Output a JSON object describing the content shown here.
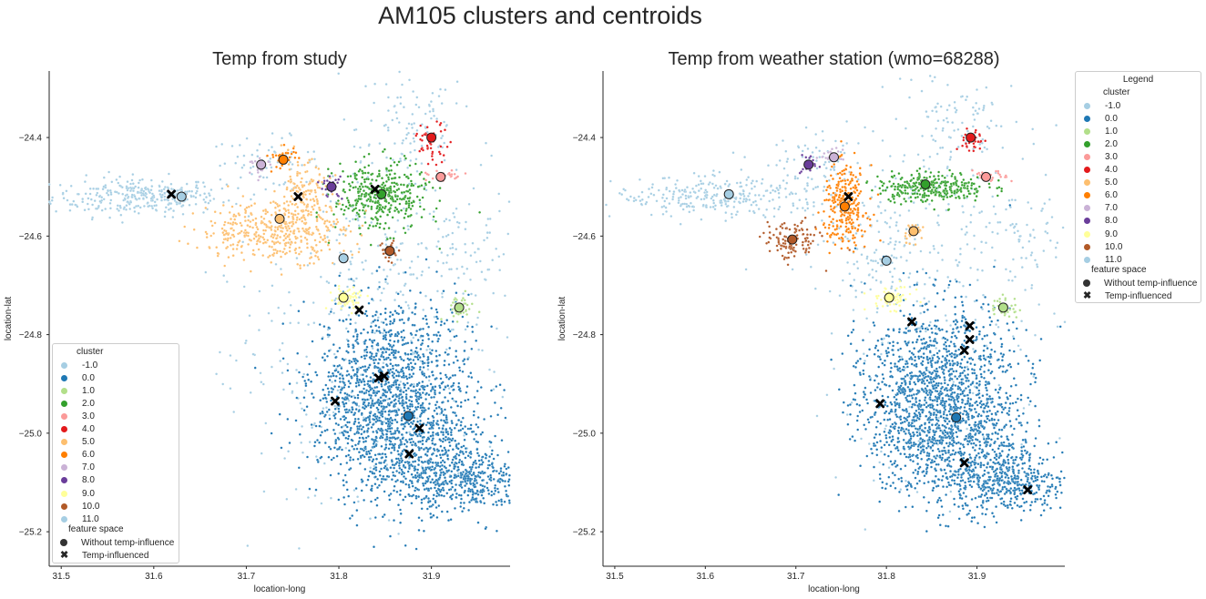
{
  "figure": {
    "suptitle": "AM105 clusters and centroids"
  },
  "legend": {
    "title": "Legend",
    "cluster_heading": "cluster",
    "feature_heading": "feature space",
    "clusters": [
      {
        "label": "-1.0",
        "color": "#a6cee3"
      },
      {
        "label": "0.0",
        "color": "#1f78b4"
      },
      {
        "label": "1.0",
        "color": "#b2df8a"
      },
      {
        "label": "2.0",
        "color": "#33a02c"
      },
      {
        "label": "3.0",
        "color": "#fb9a99"
      },
      {
        "label": "4.0",
        "color": "#e31a1c"
      },
      {
        "label": "5.0",
        "color": "#fdbf6f"
      },
      {
        "label": "6.0",
        "color": "#ff7f00"
      },
      {
        "label": "7.0",
        "color": "#cab2d6"
      },
      {
        "label": "8.0",
        "color": "#6a3d9a"
      },
      {
        "label": "9.0",
        "color": "#ffff99"
      },
      {
        "label": "10.0",
        "color": "#b15928"
      },
      {
        "label": "11.0",
        "color": "#a6cee3"
      }
    ],
    "features": [
      {
        "label": "Without temp-influence",
        "marker": "circle"
      },
      {
        "label": "Temp-influenced",
        "marker": "x"
      }
    ]
  },
  "chart_data": [
    {
      "type": "scatter",
      "title": "Temp from study",
      "xlabel": "location-long",
      "ylabel": "location-lat",
      "xlim": [
        31.487,
        31.985
      ],
      "ylim": [
        -25.27,
        -24.265
      ],
      "xticks": [
        31.5,
        31.6,
        31.7,
        31.8,
        31.9
      ],
      "yticks": [
        -24.4,
        -24.6,
        -24.8,
        -25.0,
        -25.2
      ],
      "xtick_labels": [
        "31.5",
        "31.6",
        "31.7",
        "31.8",
        "31.9"
      ],
      "ytick_labels": [
        "−24.4",
        "−24.6",
        "−24.8",
        "−25.0",
        "−25.2"
      ],
      "grid": false,
      "legend_position": "lower-left",
      "point_clouds": [
        {
          "cluster": "-1.0",
          "cx": 31.58,
          "cy": -24.52,
          "sx": 0.045,
          "sy": 0.02,
          "n": 260
        },
        {
          "cluster": "-1.0",
          "cx": 31.72,
          "cy": -24.45,
          "sx": 0.03,
          "sy": 0.025,
          "n": 60
        },
        {
          "cluster": "-1.0",
          "cx": 31.88,
          "cy": -24.38,
          "sx": 0.03,
          "sy": 0.06,
          "n": 90
        },
        {
          "cluster": "-1.0",
          "cx": 31.86,
          "cy": -24.72,
          "sx": 0.07,
          "sy": 0.2,
          "n": 300
        },
        {
          "cluster": "-1.0",
          "cx": 31.92,
          "cy": -24.62,
          "sx": 0.04,
          "sy": 0.05,
          "n": 70
        },
        {
          "cluster": "-1.0",
          "cx": 31.78,
          "cy": -24.9,
          "sx": 0.05,
          "sy": 0.15,
          "n": 120
        },
        {
          "cluster": "0.0",
          "cx": 31.86,
          "cy": -24.88,
          "sx": 0.04,
          "sy": 0.08,
          "n": 800
        },
        {
          "cluster": "0.0",
          "cx": 31.88,
          "cy": -25.02,
          "sx": 0.04,
          "sy": 0.07,
          "n": 800
        },
        {
          "cluster": "0.0",
          "cx": 31.94,
          "cy": -25.1,
          "sx": 0.03,
          "sy": 0.03,
          "n": 350
        },
        {
          "cluster": "0.0",
          "cx": 31.82,
          "cy": -24.95,
          "sx": 0.03,
          "sy": 0.07,
          "n": 300
        },
        {
          "cluster": "1.0",
          "cx": 31.93,
          "cy": -24.745,
          "sx": 0.008,
          "sy": 0.012,
          "n": 40
        },
        {
          "cluster": "2.0",
          "cx": 31.845,
          "cy": -24.52,
          "sx": 0.025,
          "sy": 0.035,
          "n": 380
        },
        {
          "cluster": "3.0",
          "cx": 31.915,
          "cy": -24.48,
          "sx": 0.01,
          "sy": 0.006,
          "n": 25
        },
        {
          "cluster": "4.0",
          "cx": 31.9,
          "cy": -24.41,
          "sx": 0.01,
          "sy": 0.02,
          "n": 45
        },
        {
          "cluster": "5.0",
          "cx": 31.73,
          "cy": -24.59,
          "sx": 0.04,
          "sy": 0.03,
          "n": 380
        },
        {
          "cluster": "5.0",
          "cx": 31.76,
          "cy": -24.53,
          "sx": 0.015,
          "sy": 0.04,
          "n": 180
        },
        {
          "cluster": "6.0",
          "cx": 31.74,
          "cy": -24.44,
          "sx": 0.008,
          "sy": 0.012,
          "n": 35
        },
        {
          "cluster": "7.0",
          "cx": 31.715,
          "cy": -24.46,
          "sx": 0.006,
          "sy": 0.008,
          "n": 20
        },
        {
          "cluster": "8.0",
          "cx": 31.792,
          "cy": -24.5,
          "sx": 0.006,
          "sy": 0.012,
          "n": 30
        },
        {
          "cluster": "9.0",
          "cx": 31.81,
          "cy": -24.725,
          "sx": 0.01,
          "sy": 0.012,
          "n": 60
        },
        {
          "cluster": "10.0",
          "cx": 31.855,
          "cy": -24.63,
          "sx": 0.006,
          "sy": 0.012,
          "n": 25
        },
        {
          "cluster": "11.0",
          "cx": 31.62,
          "cy": -24.515,
          "sx": 0.02,
          "sy": 0.01,
          "n": 70
        },
        {
          "cluster": "11.0",
          "cx": 31.805,
          "cy": -24.645,
          "sx": 0.006,
          "sy": 0.008,
          "n": 15
        }
      ],
      "centroids_without_temp": [
        {
          "cluster": "-1.0",
          "x": 31.63,
          "y": -24.52
        },
        {
          "cluster": "0.0",
          "x": 31.875,
          "y": -24.965
        },
        {
          "cluster": "1.0",
          "x": 31.93,
          "y": -24.745
        },
        {
          "cluster": "2.0",
          "x": 31.846,
          "y": -24.515
        },
        {
          "cluster": "3.0",
          "x": 31.91,
          "y": -24.48
        },
        {
          "cluster": "4.0",
          "x": 31.9,
          "y": -24.4
        },
        {
          "cluster": "5.0",
          "x": 31.736,
          "y": -24.565
        },
        {
          "cluster": "6.0",
          "x": 31.74,
          "y": -24.445
        },
        {
          "cluster": "7.0",
          "x": 31.716,
          "y": -24.455
        },
        {
          "cluster": "8.0",
          "x": 31.792,
          "y": -24.5
        },
        {
          "cluster": "9.0",
          "x": 31.805,
          "y": -24.725
        },
        {
          "cluster": "10.0",
          "x": 31.855,
          "y": -24.63
        },
        {
          "cluster": "11.0",
          "x": 31.805,
          "y": -24.645
        }
      ],
      "centroids_temp_influenced": [
        {
          "x": 31.619,
          "y": -24.515
        },
        {
          "x": 31.756,
          "y": -24.52
        },
        {
          "x": 31.839,
          "y": -24.505
        },
        {
          "x": 31.822,
          "y": -24.75
        },
        {
          "x": 31.843,
          "y": -24.888
        },
        {
          "x": 31.849,
          "y": -24.884
        },
        {
          "x": 31.796,
          "y": -24.935
        },
        {
          "x": 31.887,
          "y": -24.99
        },
        {
          "x": 31.876,
          "y": -25.042
        }
      ]
    },
    {
      "type": "scatter",
      "title": "Temp from weather station (wmo=68288)",
      "xlabel": "location-long",
      "ylabel": "location-lat",
      "xlim": [
        31.487,
        31.997
      ],
      "ylim": [
        -25.27,
        -24.265
      ],
      "xticks": [
        31.5,
        31.6,
        31.7,
        31.8,
        31.9
      ],
      "yticks": [
        -24.4,
        -24.6,
        -24.8,
        -25.0,
        -25.2
      ],
      "xtick_labels": [
        "31.5",
        "31.6",
        "31.7",
        "31.8",
        "31.9"
      ],
      "ytick_labels": [
        "−24.4",
        "−24.6",
        "−24.8",
        "−25.0",
        "−25.2"
      ],
      "grid": false,
      "point_clouds": [
        {
          "cluster": "-1.0",
          "cx": 31.62,
          "cy": -24.52,
          "sx": 0.06,
          "sy": 0.02,
          "n": 300
        },
        {
          "cluster": "-1.0",
          "cx": 31.72,
          "cy": -24.45,
          "sx": 0.03,
          "sy": 0.025,
          "n": 60
        },
        {
          "cluster": "-1.0",
          "cx": 31.88,
          "cy": -24.38,
          "sx": 0.03,
          "sy": 0.06,
          "n": 90
        },
        {
          "cluster": "-1.0",
          "cx": 31.86,
          "cy": -24.72,
          "sx": 0.07,
          "sy": 0.2,
          "n": 280
        },
        {
          "cluster": "-1.0",
          "cx": 31.94,
          "cy": -24.6,
          "sx": 0.04,
          "sy": 0.05,
          "n": 70
        },
        {
          "cluster": "-1.0",
          "cx": 31.79,
          "cy": -24.62,
          "sx": 0.03,
          "sy": 0.05,
          "n": 90
        },
        {
          "cluster": "0.0",
          "cx": 31.86,
          "cy": -24.88,
          "sx": 0.04,
          "sy": 0.08,
          "n": 800
        },
        {
          "cluster": "0.0",
          "cx": 31.88,
          "cy": -25.02,
          "sx": 0.04,
          "sy": 0.07,
          "n": 800
        },
        {
          "cluster": "0.0",
          "cx": 31.94,
          "cy": -25.1,
          "sx": 0.03,
          "sy": 0.03,
          "n": 350
        },
        {
          "cluster": "0.0",
          "cx": 31.82,
          "cy": -24.95,
          "sx": 0.03,
          "sy": 0.07,
          "n": 300
        },
        {
          "cluster": "1.0",
          "cx": 31.93,
          "cy": -24.745,
          "sx": 0.008,
          "sy": 0.012,
          "n": 40
        },
        {
          "cluster": "2.0",
          "cx": 31.85,
          "cy": -24.5,
          "sx": 0.03,
          "sy": 0.015,
          "n": 300
        },
        {
          "cluster": "3.0",
          "cx": 31.915,
          "cy": -24.48,
          "sx": 0.01,
          "sy": 0.006,
          "n": 25
        },
        {
          "cluster": "4.0",
          "cx": 31.895,
          "cy": -24.41,
          "sx": 0.006,
          "sy": 0.015,
          "n": 35
        },
        {
          "cluster": "5.0",
          "cx": 31.83,
          "cy": -24.59,
          "sx": 0.006,
          "sy": 0.01,
          "n": 30
        },
        {
          "cluster": "6.0",
          "cx": 31.755,
          "cy": -24.54,
          "sx": 0.012,
          "sy": 0.04,
          "n": 280
        },
        {
          "cluster": "7.0",
          "cx": 31.74,
          "cy": -24.44,
          "sx": 0.006,
          "sy": 0.008,
          "n": 20
        },
        {
          "cluster": "8.0",
          "cx": 31.715,
          "cy": -24.455,
          "sx": 0.005,
          "sy": 0.01,
          "n": 25
        },
        {
          "cluster": "9.0",
          "cx": 31.805,
          "cy": -24.725,
          "sx": 0.012,
          "sy": 0.012,
          "n": 60
        },
        {
          "cluster": "10.0",
          "cx": 31.695,
          "cy": -24.61,
          "sx": 0.015,
          "sy": 0.02,
          "n": 120
        },
        {
          "cluster": "11.0",
          "cx": 31.8,
          "cy": -24.65,
          "sx": 0.005,
          "sy": 0.008,
          "n": 15
        }
      ],
      "centroids_without_temp": [
        {
          "cluster": "-1.0",
          "x": 31.626,
          "y": -24.515
        },
        {
          "cluster": "0.0",
          "x": 31.877,
          "y": -24.968
        },
        {
          "cluster": "1.0",
          "x": 31.929,
          "y": -24.745
        },
        {
          "cluster": "2.0",
          "x": 31.843,
          "y": -24.495
        },
        {
          "cluster": "3.0",
          "x": 31.91,
          "y": -24.48
        },
        {
          "cluster": "4.0",
          "x": 31.893,
          "y": -24.4
        },
        {
          "cluster": "5.0",
          "x": 31.83,
          "y": -24.59
        },
        {
          "cluster": "6.0",
          "x": 31.754,
          "y": -24.54
        },
        {
          "cluster": "7.0",
          "x": 31.742,
          "y": -24.44
        },
        {
          "cluster": "8.0",
          "x": 31.714,
          "y": -24.455
        },
        {
          "cluster": "9.0",
          "x": 31.803,
          "y": -24.725
        },
        {
          "cluster": "10.0",
          "x": 31.696,
          "y": -24.607
        },
        {
          "cluster": "11.0",
          "x": 31.8,
          "y": -24.65
        }
      ],
      "centroids_temp_influenced": [
        {
          "x": 31.758,
          "y": -24.52
        },
        {
          "x": 31.828,
          "y": -24.774
        },
        {
          "x": 31.892,
          "y": -24.782
        },
        {
          "x": 31.892,
          "y": -24.81
        },
        {
          "x": 31.886,
          "y": -24.832
        },
        {
          "x": 31.793,
          "y": -24.94
        },
        {
          "x": 31.886,
          "y": -25.06
        },
        {
          "x": 31.956,
          "y": -25.115
        }
      ]
    }
  ]
}
